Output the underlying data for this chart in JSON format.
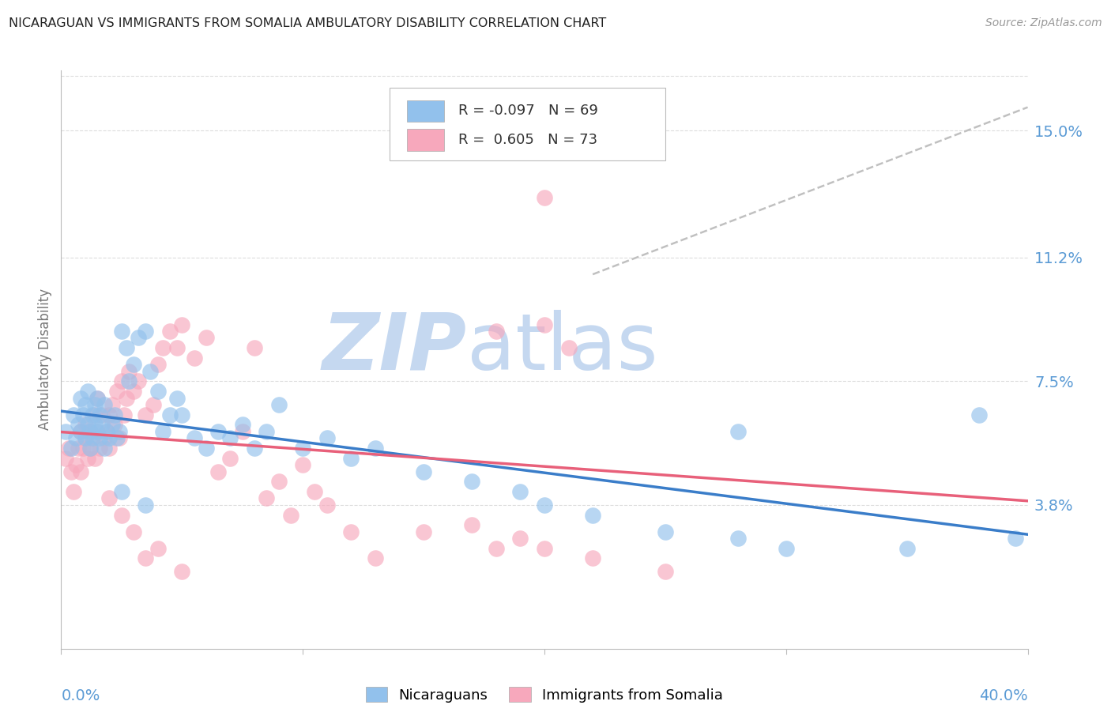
{
  "title": "NICARAGUAN VS IMMIGRANTS FROM SOMALIA AMBULATORY DISABILITY CORRELATION CHART",
  "source": "Source: ZipAtlas.com",
  "ylabel": "Ambulatory Disability",
  "ytick_values": [
    0.038,
    0.075,
    0.112,
    0.15
  ],
  "ytick_labels": [
    "3.8%",
    "7.5%",
    "11.2%",
    "15.0%"
  ],
  "xmin": 0.0,
  "xmax": 0.4,
  "ymin": -0.005,
  "ymax": 0.168,
  "legend_blue_r": "-0.097",
  "legend_blue_n": "69",
  "legend_pink_r": "0.605",
  "legend_pink_n": "73",
  "legend_blue_label": "Nicaraguans",
  "legend_pink_label": "Immigrants from Somalia",
  "blue_color": "#92C1EC",
  "pink_color": "#F7A8BC",
  "trendline_blue_color": "#3A7DC9",
  "trendline_pink_color": "#E8607A",
  "trendline_gray_color": "#C0C0C0",
  "watermark_zip_color": "#C5D8F0",
  "watermark_atlas_color": "#C5D8F0",
  "background_color": "#FFFFFF",
  "grid_color": "#DDDDDD",
  "title_color": "#222222",
  "axis_label_color": "#5B9BD5",
  "scatter_size": 220,
  "scatter_alpha": 0.65,
  "blue_scatter_x": [
    0.002,
    0.004,
    0.005,
    0.006,
    0.007,
    0.008,
    0.008,
    0.009,
    0.01,
    0.01,
    0.011,
    0.011,
    0.012,
    0.012,
    0.013,
    0.013,
    0.014,
    0.014,
    0.015,
    0.015,
    0.016,
    0.016,
    0.017,
    0.018,
    0.018,
    0.019,
    0.02,
    0.021,
    0.022,
    0.023,
    0.024,
    0.025,
    0.027,
    0.028,
    0.03,
    0.032,
    0.035,
    0.037,
    0.04,
    0.042,
    0.045,
    0.048,
    0.05,
    0.055,
    0.06,
    0.065,
    0.07,
    0.075,
    0.08,
    0.085,
    0.09,
    0.1,
    0.11,
    0.12,
    0.13,
    0.15,
    0.17,
    0.19,
    0.2,
    0.22,
    0.25,
    0.28,
    0.3,
    0.35,
    0.38,
    0.395,
    0.025,
    0.035,
    0.28
  ],
  "blue_scatter_y": [
    0.06,
    0.055,
    0.065,
    0.058,
    0.062,
    0.07,
    0.06,
    0.065,
    0.068,
    0.058,
    0.072,
    0.062,
    0.06,
    0.055,
    0.065,
    0.058,
    0.068,
    0.062,
    0.06,
    0.07,
    0.058,
    0.065,
    0.062,
    0.068,
    0.055,
    0.06,
    0.058,
    0.062,
    0.065,
    0.058,
    0.06,
    0.09,
    0.085,
    0.075,
    0.08,
    0.088,
    0.09,
    0.078,
    0.072,
    0.06,
    0.065,
    0.07,
    0.065,
    0.058,
    0.055,
    0.06,
    0.058,
    0.062,
    0.055,
    0.06,
    0.068,
    0.055,
    0.058,
    0.052,
    0.055,
    0.048,
    0.045,
    0.042,
    0.038,
    0.035,
    0.03,
    0.028,
    0.025,
    0.025,
    0.065,
    0.028,
    0.042,
    0.038,
    0.06
  ],
  "pink_scatter_x": [
    0.002,
    0.003,
    0.004,
    0.005,
    0.006,
    0.007,
    0.008,
    0.008,
    0.009,
    0.01,
    0.01,
    0.011,
    0.012,
    0.012,
    0.013,
    0.014,
    0.014,
    0.015,
    0.015,
    0.016,
    0.017,
    0.018,
    0.019,
    0.02,
    0.02,
    0.021,
    0.022,
    0.023,
    0.024,
    0.025,
    0.026,
    0.027,
    0.028,
    0.03,
    0.032,
    0.035,
    0.038,
    0.04,
    0.042,
    0.045,
    0.048,
    0.05,
    0.055,
    0.06,
    0.065,
    0.07,
    0.075,
    0.08,
    0.085,
    0.09,
    0.095,
    0.1,
    0.105,
    0.11,
    0.12,
    0.13,
    0.15,
    0.17,
    0.18,
    0.19,
    0.2,
    0.22,
    0.25,
    0.18,
    0.2,
    0.21,
    0.02,
    0.025,
    0.03,
    0.035,
    0.04,
    0.05,
    0.2
  ],
  "pink_scatter_y": [
    0.052,
    0.055,
    0.048,
    0.042,
    0.05,
    0.055,
    0.06,
    0.048,
    0.055,
    0.058,
    0.062,
    0.052,
    0.055,
    0.06,
    0.058,
    0.065,
    0.052,
    0.06,
    0.07,
    0.055,
    0.065,
    0.058,
    0.06,
    0.065,
    0.055,
    0.068,
    0.062,
    0.072,
    0.058,
    0.075,
    0.065,
    0.07,
    0.078,
    0.072,
    0.075,
    0.065,
    0.068,
    0.08,
    0.085,
    0.09,
    0.085,
    0.092,
    0.082,
    0.088,
    0.048,
    0.052,
    0.06,
    0.085,
    0.04,
    0.045,
    0.035,
    0.05,
    0.042,
    0.038,
    0.03,
    0.022,
    0.03,
    0.032,
    0.025,
    0.028,
    0.025,
    0.022,
    0.018,
    0.09,
    0.092,
    0.085,
    0.04,
    0.035,
    0.03,
    0.022,
    0.025,
    0.018,
    0.13
  ],
  "gray_line_x": [
    0.22,
    0.4
  ],
  "gray_line_y": [
    0.107,
    0.157
  ]
}
